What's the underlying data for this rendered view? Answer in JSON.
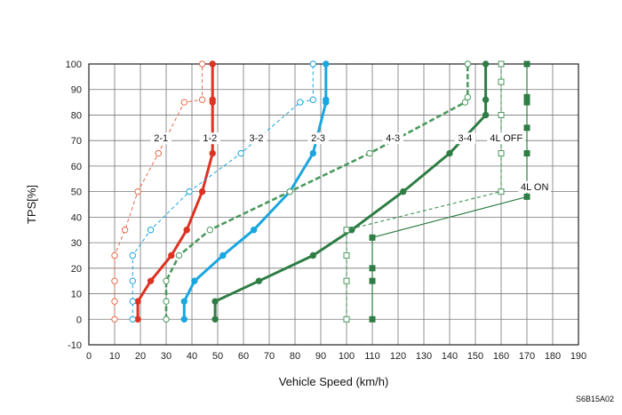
{
  "chart_data": {
    "type": "line",
    "xlabel": "Vehicle Speed (km/h)",
    "ylabel": "TPS[%]",
    "xlim": [
      0,
      190
    ],
    "ylim": [
      -10,
      100
    ],
    "xticks": [
      0,
      10,
      20,
      30,
      40,
      50,
      60,
      70,
      80,
      90,
      100,
      110,
      120,
      130,
      140,
      150,
      160,
      170,
      180,
      190
    ],
    "yticks": [
      -10,
      0,
      10,
      20,
      30,
      40,
      50,
      60,
      70,
      80,
      90,
      100
    ],
    "grid": true,
    "colors": {
      "red": "#dd3322",
      "red_dashed": "#e86a4a",
      "blue": "#1aa6df",
      "blue_dashed": "#1aa6df",
      "green": "#2e7d45",
      "green_dashed": "#4a9a5e"
    },
    "series": [
      {
        "name": "2-1",
        "style": "dashed-open",
        "color": "#e86a4a",
        "label_at": [
          28,
          70
        ],
        "points": [
          [
            10,
            0
          ],
          [
            10,
            7
          ],
          [
            10,
            15
          ],
          [
            10,
            25
          ],
          [
            14,
            35
          ],
          [
            19,
            50
          ],
          [
            27,
            65
          ],
          [
            37,
            85
          ],
          [
            44,
            86
          ],
          [
            44,
            100
          ]
        ]
      },
      {
        "name": "1-2",
        "style": "solid-filled",
        "color": "#dd3322",
        "label_at": [
          47,
          70
        ],
        "points": [
          [
            19,
            0
          ],
          [
            19,
            7
          ],
          [
            24,
            15
          ],
          [
            32,
            25
          ],
          [
            38,
            35
          ],
          [
            44,
            50
          ],
          [
            48,
            65
          ],
          [
            48,
            85
          ],
          [
            48,
            86
          ],
          [
            48,
            100
          ]
        ]
      },
      {
        "name": "3-2",
        "style": "dashed-open",
        "color": "#1aa6df",
        "label_at": [
          65,
          70
        ],
        "points": [
          [
            17,
            0
          ],
          [
            17,
            7
          ],
          [
            17,
            15
          ],
          [
            17,
            25
          ],
          [
            24,
            35
          ],
          [
            39,
            50
          ],
          [
            59,
            65
          ],
          [
            82,
            85
          ],
          [
            87,
            86
          ],
          [
            87,
            100
          ]
        ]
      },
      {
        "name": "2-3",
        "style": "solid-filled",
        "color": "#1aa6df",
        "label_at": [
          89,
          70
        ],
        "points": [
          [
            37,
            0
          ],
          [
            37,
            7
          ],
          [
            41,
            15
          ],
          [
            52,
            25
          ],
          [
            64,
            35
          ],
          [
            78,
            50
          ],
          [
            87,
            65
          ],
          [
            92,
            85
          ],
          [
            92,
            86
          ],
          [
            92,
            100
          ]
        ]
      },
      {
        "name": "4-3",
        "style": "dashed-open",
        "color": "#4a9a5e",
        "label_at": [
          118,
          70
        ],
        "points": [
          [
            30,
            0
          ],
          [
            30,
            7
          ],
          [
            30,
            15
          ],
          [
            35,
            25
          ],
          [
            47,
            35
          ],
          [
            78,
            50
          ],
          [
            109,
            65
          ],
          [
            146,
            85
          ],
          [
            147,
            87
          ],
          [
            147,
            100
          ]
        ]
      },
      {
        "name": "3-4",
        "style": "solid-filled",
        "color": "#2e7d45",
        "label_at": [
          146,
          70
        ],
        "points": [
          [
            49,
            0
          ],
          [
            49,
            7
          ],
          [
            66,
            15
          ],
          [
            87,
            25
          ],
          [
            102,
            35
          ],
          [
            122,
            50
          ],
          [
            140,
            65
          ],
          [
            154,
            80
          ],
          [
            154,
            86
          ],
          [
            154,
            100
          ]
        ]
      },
      {
        "name": "4L OFF",
        "style": "dashed-open-square",
        "color": "#4a9a5e",
        "label_at": [
          162,
          70
        ],
        "points": [
          [
            100,
            0
          ],
          [
            100,
            15
          ],
          [
            100,
            25
          ],
          [
            100,
            35
          ],
          [
            160,
            50
          ],
          [
            160,
            65
          ],
          [
            160,
            80
          ],
          [
            160,
            93
          ],
          [
            160,
            100
          ]
        ]
      },
      {
        "name": "4L ON",
        "style": "solid-filled-square",
        "color": "#2e7d45",
        "label_at": [
          173,
          51
        ],
        "points": [
          [
            110,
            0
          ],
          [
            110,
            15
          ],
          [
            110,
            20
          ],
          [
            110,
            32
          ],
          [
            170,
            48
          ],
          [
            170,
            65
          ],
          [
            170,
            75
          ],
          [
            170,
            85
          ],
          [
            170,
            87
          ],
          [
            170,
            100
          ]
        ]
      }
    ]
  },
  "labels": {
    "code": "S6B15A02"
  }
}
